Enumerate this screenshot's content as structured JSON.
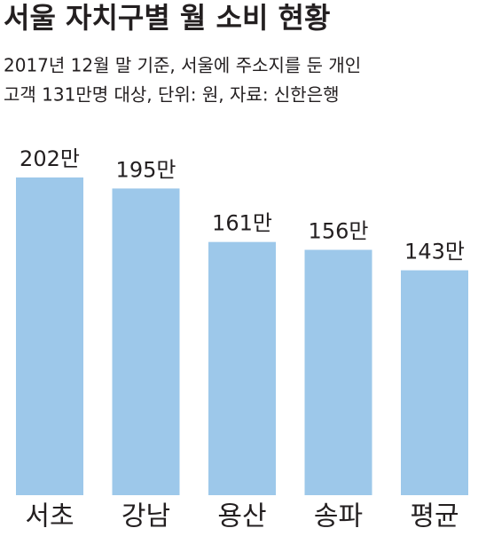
{
  "chart_data": {
    "type": "bar",
    "title": "서울 자치구별 월 소비 현황",
    "subtitle": [
      "2017년 12월 말 기준, 서울에 주소지를 둔 개인",
      "고객 131만명 대상,  단위: 원, 자료: 신한은행"
    ],
    "categories": [
      "서초",
      "강남",
      "용산",
      "송파",
      "평균"
    ],
    "values": [
      202,
      195,
      161,
      156,
      143
    ],
    "value_labels": [
      "202만",
      "195만",
      "161만",
      "156만",
      "143만"
    ],
    "color": "#9dc8ea"
  }
}
